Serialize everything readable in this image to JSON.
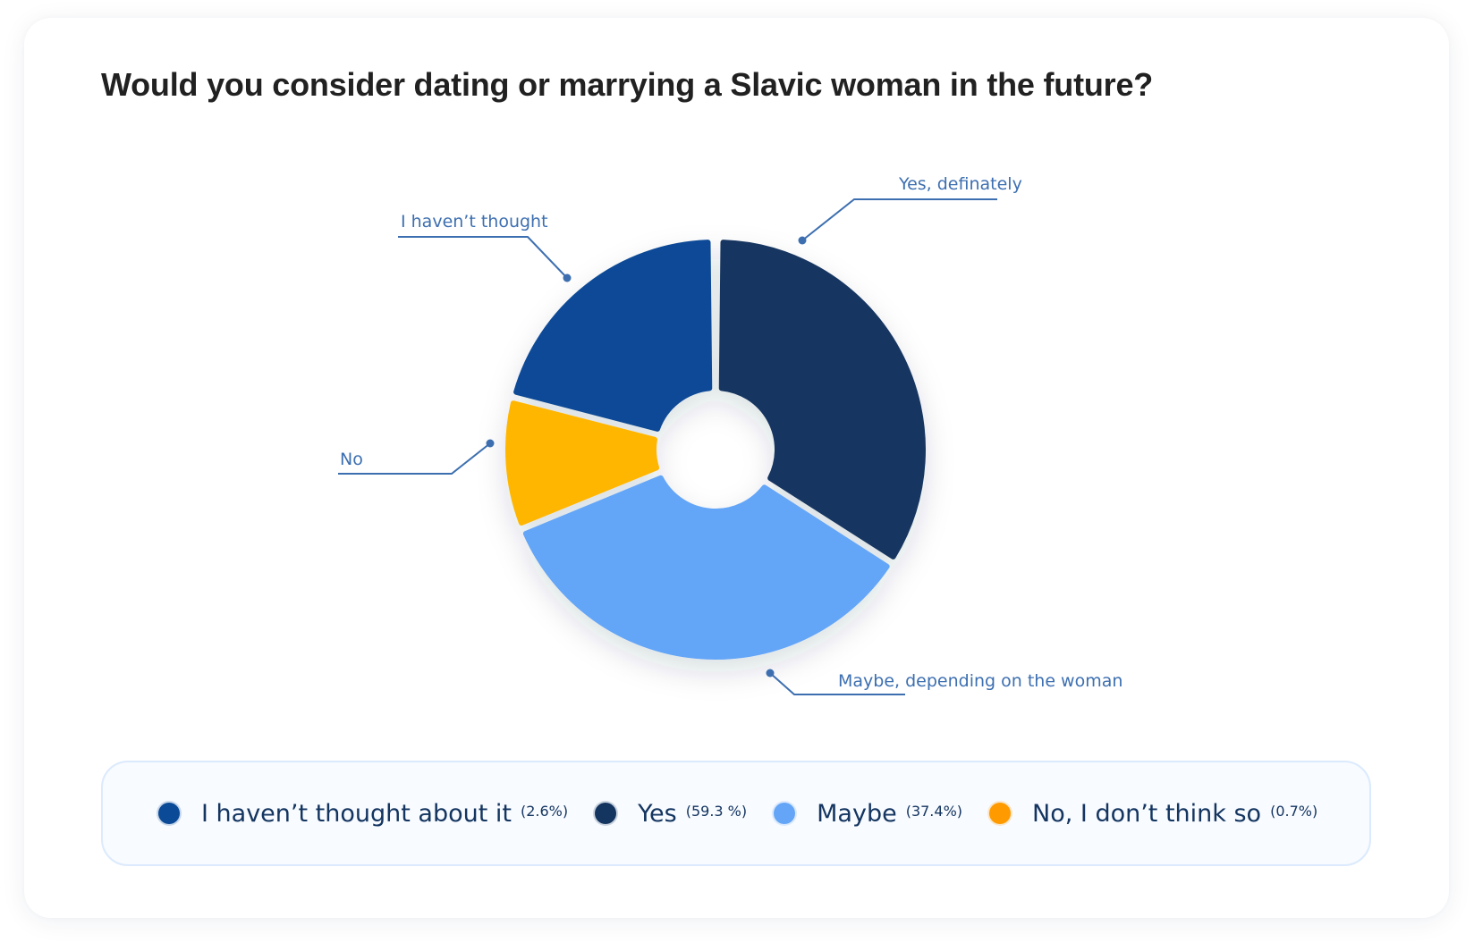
{
  "title": "Would you consider dating or marrying a Slavic woman in the future?",
  "chart_data": {
    "type": "pie",
    "variant": "donut",
    "title": "Would you consider dating or marrying a Slavic woman in the future?",
    "categories": [
      "I haven’t thought about it",
      "Yes",
      "Maybe",
      "No, I don’t think so"
    ],
    "values": [
      2.6,
      59.3,
      37.4,
      0.7
    ],
    "value_labels": [
      "(2.6%)",
      "(59.3 %)",
      "(37.4%)",
      "(0.7%)"
    ],
    "colors": [
      "#0B4A96",
      "#143560",
      "#64A5F7",
      "#FFB600"
    ],
    "callouts": [
      "I haven’t thought",
      "Yes, definately",
      "Maybe, depending on the woman",
      "No"
    ],
    "legend_position": "bottom"
  },
  "callouts": [
    {
      "label": "Yes, definately"
    },
    {
      "label": "I haven’t thought"
    },
    {
      "label": "No"
    },
    {
      "label": "Maybe, depending on the woman"
    }
  ],
  "legend": {
    "items": [
      {
        "label": "I haven’t thought about it",
        "pct": "(2.6%)",
        "color": "#0B4A96"
      },
      {
        "label": "Yes",
        "pct": "(59.3 %)",
        "color": "#143560"
      },
      {
        "label": "Maybe",
        "pct": "(37.4%)",
        "color": "#64A5F7"
      },
      {
        "label": "No, I don’t think so",
        "pct": "(0.7%)",
        "color": "#FF9B00"
      }
    ]
  }
}
